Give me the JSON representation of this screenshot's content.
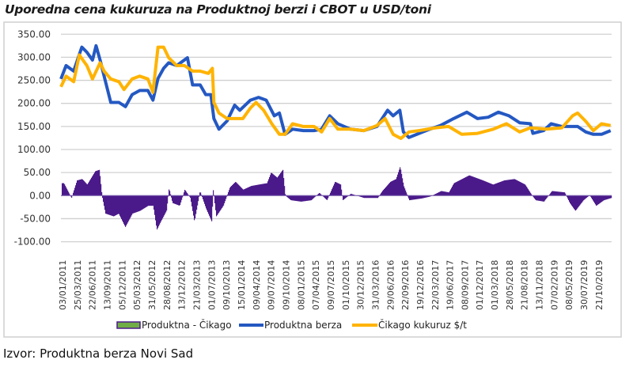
{
  "chart_data": {
    "type": "line",
    "title": "Uporedna cena kukuruza na Produktnoj berzi i CBOT u USD/toni",
    "source": "Izvor: Produktna berza Novi Sad",
    "x_unit": "months since January 2011",
    "ylim": [
      -100,
      350
    ],
    "yticks": [
      "350.00",
      "300.00",
      "250.00",
      "200.00",
      "150.00",
      "100.00",
      "50.00",
      "0.00",
      "-50.00",
      "-100.00"
    ],
    "ytick_values": [
      350,
      300,
      250,
      200,
      150,
      100,
      50,
      0,
      -50,
      -100
    ],
    "xtick_labels": [
      "03/01/2011",
      "25/03/2011",
      "22/06/2011",
      "13/09/2011",
      "05/12/2011",
      "05/03/2012",
      "31/05/2012",
      "28/08/2012",
      "13/12/2012",
      "21/03/2013",
      "01/07/2013",
      "09/10/2013",
      "15/01/2014",
      "09/04/2014",
      "09/07/2014",
      "09/10/2014",
      "08/01/2015",
      "07/04/2015",
      "09/07/2015",
      "01/10/2015",
      "30/12/2015",
      "31/03/2016",
      "29/06/2016",
      "22/09/2016",
      "19/12/2016",
      "22/03/2017",
      "19/06/2017",
      "08/09/2017",
      "01/12/2017",
      "01/03/2018",
      "28/05/2018",
      "21/08/2018",
      "13/11/2018",
      "07/02/2019",
      "08/05/2019",
      "30/07/2019",
      "21/10/2019"
    ],
    "grid": true,
    "legend_position": "bottom",
    "series": [
      {
        "name": "Produktna - Čikago",
        "kind": "bar",
        "color": "#4b1a8a",
        "legend_fill": "#70ad47",
        "points": [
          [
            0.2,
            27
          ],
          [
            1.7,
            -5
          ],
          [
            2.8,
            33
          ],
          [
            3.8,
            36
          ],
          [
            4.8,
            24
          ],
          [
            6.4,
            53
          ],
          [
            7.2,
            56
          ],
          [
            7.7,
            0
          ],
          [
            8.4,
            -39
          ],
          [
            10,
            -45
          ],
          [
            11,
            -39
          ],
          [
            12.3,
            -68
          ],
          [
            13.7,
            -39
          ],
          [
            15.2,
            -33
          ],
          [
            16.8,
            -22
          ],
          [
            17.8,
            -22
          ],
          [
            18.5,
            -74
          ],
          [
            19.3,
            -56
          ],
          [
            20.4,
            -33
          ],
          [
            20.9,
            16
          ],
          [
            21.6,
            -16
          ],
          [
            23,
            -22
          ],
          [
            24,
            13
          ],
          [
            25.1,
            -5
          ],
          [
            25.9,
            -56
          ],
          [
            27,
            10
          ],
          [
            28.2,
            -28
          ],
          [
            29.3,
            -56
          ],
          [
            29.6,
            13
          ],
          [
            30.2,
            -45
          ],
          [
            31.6,
            -22
          ],
          [
            32.9,
            18
          ],
          [
            34,
            30
          ],
          [
            35.5,
            13
          ],
          [
            37.1,
            21
          ],
          [
            38.6,
            24
          ],
          [
            40.2,
            27
          ],
          [
            41,
            50
          ],
          [
            42.2,
            39
          ],
          [
            43.3,
            56
          ],
          [
            43.8,
            0
          ],
          [
            44.9,
            -10
          ],
          [
            46.9,
            -13
          ],
          [
            48.9,
            -10
          ],
          [
            50.5,
            6
          ],
          [
            52,
            -10
          ],
          [
            53.6,
            30
          ],
          [
            54.7,
            24
          ],
          [
            55.1,
            -10
          ],
          [
            56.7,
            4
          ],
          [
            59.3,
            -5
          ],
          [
            62,
            -5
          ],
          [
            62.9,
            10
          ],
          [
            64.5,
            30
          ],
          [
            65.6,
            36
          ],
          [
            66.4,
            63
          ],
          [
            67.1,
            21
          ],
          [
            68.2,
            -10
          ],
          [
            70.7,
            -6
          ],
          [
            72.3,
            -2
          ],
          [
            74.5,
            10
          ],
          [
            76,
            7
          ],
          [
            77,
            27
          ],
          [
            80,
            44
          ],
          [
            82.7,
            33
          ],
          [
            84.7,
            24
          ],
          [
            86.9,
            33
          ],
          [
            88.9,
            36
          ],
          [
            91,
            24
          ],
          [
            92.4,
            0
          ],
          [
            93.1,
            -10
          ],
          [
            94.7,
            -13
          ],
          [
            96.3,
            10
          ],
          [
            98.8,
            7
          ],
          [
            99.8,
            -16
          ],
          [
            100.9,
            -33
          ],
          [
            102.5,
            -10
          ],
          [
            103.7,
            1
          ],
          [
            105,
            -22
          ],
          [
            106.5,
            -10
          ],
          [
            108,
            -5
          ]
        ]
      },
      {
        "name": "Produktna berza",
        "kind": "line",
        "color": "#2458c2",
        "points": [
          [
            -0.4,
            253
          ],
          [
            0.7,
            282
          ],
          [
            2.2,
            270
          ],
          [
            3.8,
            322
          ],
          [
            4.8,
            311
          ],
          [
            5.9,
            294
          ],
          [
            6.6,
            325
          ],
          [
            7.4,
            294
          ],
          [
            8.2,
            259
          ],
          [
            9.5,
            202
          ],
          [
            11.1,
            202
          ],
          [
            12.4,
            193
          ],
          [
            13.7,
            219
          ],
          [
            15.2,
            228
          ],
          [
            16.8,
            228
          ],
          [
            17.8,
            207
          ],
          [
            18.8,
            254
          ],
          [
            19.9,
            276
          ],
          [
            20.9,
            288
          ],
          [
            22.5,
            282
          ],
          [
            24.6,
            299
          ],
          [
            25.6,
            240
          ],
          [
            27.1,
            240
          ],
          [
            28.2,
            219
          ],
          [
            29.2,
            219
          ],
          [
            29.8,
            167
          ],
          [
            30.8,
            144
          ],
          [
            32.4,
            162
          ],
          [
            33.9,
            196
          ],
          [
            34.9,
            185
          ],
          [
            37,
            207
          ],
          [
            38.6,
            213
          ],
          [
            40.1,
            207
          ],
          [
            41.7,
            173
          ],
          [
            42.7,
            179
          ],
          [
            43.8,
            133
          ],
          [
            45.3,
            144
          ],
          [
            47.4,
            141
          ],
          [
            49.5,
            141
          ],
          [
            51,
            144
          ],
          [
            52.6,
            173
          ],
          [
            54.2,
            156
          ],
          [
            56.7,
            144
          ],
          [
            59.3,
            141
          ],
          [
            61.9,
            150
          ],
          [
            64,
            185
          ],
          [
            65.1,
            173
          ],
          [
            66.4,
            185
          ],
          [
            67.1,
            138
          ],
          [
            68.2,
            126
          ],
          [
            70.2,
            135
          ],
          [
            72.3,
            144
          ],
          [
            74.4,
            152
          ],
          [
            77,
            167
          ],
          [
            79.6,
            181
          ],
          [
            81.7,
            167
          ],
          [
            83.8,
            170
          ],
          [
            85.8,
            181
          ],
          [
            87.9,
            173
          ],
          [
            90,
            158
          ],
          [
            92.1,
            156
          ],
          [
            92.6,
            135
          ],
          [
            94.7,
            141
          ],
          [
            96.2,
            156
          ],
          [
            98.3,
            150
          ],
          [
            100.4,
            150
          ],
          [
            101.4,
            150
          ],
          [
            103,
            138
          ],
          [
            104.5,
            133
          ],
          [
            106.1,
            133
          ],
          [
            107.9,
            141
          ]
        ]
      },
      {
        "name": "Čikago kukuruz $/t",
        "kind": "line",
        "color": "#ffb300",
        "points": [
          [
            -0.4,
            236
          ],
          [
            0.7,
            259
          ],
          [
            2.2,
            247
          ],
          [
            3.3,
            305
          ],
          [
            4.8,
            282
          ],
          [
            5.9,
            253
          ],
          [
            7.4,
            288
          ],
          [
            8.2,
            270
          ],
          [
            9.5,
            253
          ],
          [
            11.1,
            247
          ],
          [
            12.1,
            230
          ],
          [
            13.7,
            253
          ],
          [
            15.2,
            259
          ],
          [
            16.8,
            253
          ],
          [
            17.8,
            224
          ],
          [
            18.8,
            322
          ],
          [
            19.9,
            322
          ],
          [
            20.9,
            299
          ],
          [
            22.5,
            282
          ],
          [
            24,
            282
          ],
          [
            25.6,
            270
          ],
          [
            27.1,
            270
          ],
          [
            28.7,
            265
          ],
          [
            29.5,
            276
          ],
          [
            29.8,
            202
          ],
          [
            30.8,
            179
          ],
          [
            32.4,
            167
          ],
          [
            33.9,
            167
          ],
          [
            35.5,
            167
          ],
          [
            37,
            190
          ],
          [
            38.1,
            202
          ],
          [
            39.6,
            185
          ],
          [
            41.2,
            156
          ],
          [
            42.7,
            133
          ],
          [
            43.8,
            133
          ],
          [
            45.3,
            156
          ],
          [
            47.4,
            150
          ],
          [
            49.5,
            150
          ],
          [
            51,
            138
          ],
          [
            52.6,
            167
          ],
          [
            54.2,
            144
          ],
          [
            56.7,
            144
          ],
          [
            59.3,
            141
          ],
          [
            61.9,
            152
          ],
          [
            63.5,
            167
          ],
          [
            65.1,
            133
          ],
          [
            66.6,
            124
          ],
          [
            68.2,
            138
          ],
          [
            70.2,
            141
          ],
          [
            73.4,
            147
          ],
          [
            76,
            150
          ],
          [
            78.6,
            133
          ],
          [
            81.7,
            135
          ],
          [
            84.8,
            144
          ],
          [
            87.4,
            156
          ],
          [
            90,
            138
          ],
          [
            92.1,
            147
          ],
          [
            95.2,
            144
          ],
          [
            98.3,
            147
          ],
          [
            100.4,
            173
          ],
          [
            101.4,
            179
          ],
          [
            103,
            161
          ],
          [
            104.5,
            141
          ],
          [
            106.1,
            156
          ],
          [
            107.9,
            152
          ]
        ]
      }
    ]
  }
}
